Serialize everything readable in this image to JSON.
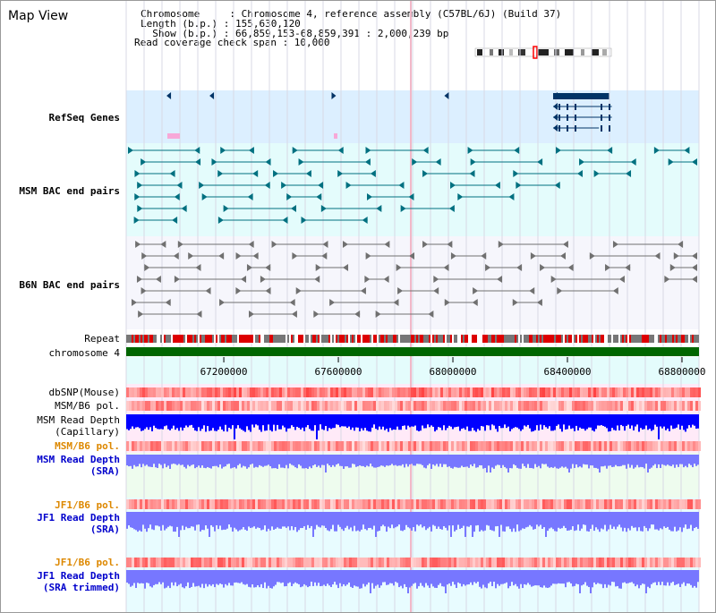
{
  "page": {
    "title": "Map View"
  },
  "info": {
    "lines": [
      "Chromosome     : Chromosome 4, reference assembly (C57BL/6J) (Build 37)",
      "Length (b.p.) : 155,630,120",
      "  Show (b.p.) : 66,859,153-68,859,391 : 2,000,239 bp",
      "Read coverage check span : 10,000"
    ]
  },
  "colors": {
    "refseq_bg": "#dcefff",
    "msm_bac_bg": "#e4fcfc",
    "b6n_bac_bg": "#f6f6fc",
    "depth_bg_pink": "#ffeaf8",
    "depth_bg_green": "#eefcee",
    "depth_bg_cyan": "#e8fcff",
    "gene_color": "#003366",
    "msm_bac_color": "#007080",
    "b6n_bac_color": "#707070",
    "chromosome_color": "#006600",
    "capillary_depth": "#0000ff",
    "sra_depth": "#7777ff",
    "label_blue": "#0000cc",
    "label_teal": "#005577",
    "label_orange": "#dd8800"
  },
  "tracks": {
    "refseq": "RefSeq Genes",
    "msm_bac": "MSM BAC end pairs",
    "b6n_bac": "B6N BAC end pairs",
    "repeat": "Repeat",
    "chromosome": "chromosome 4",
    "dbsnp": "dbSNP(Mouse)",
    "msm_b6_pol_1": "MSM/B6 pol.",
    "msm_depth_cap": [
      "MSM Read Depth",
      "(Capillary)"
    ],
    "msm_b6_pol_2": "MSM/B6 pol.",
    "msm_depth_sra": [
      "MSM Read Depth",
      "(SRA)"
    ],
    "jf1_b6_pol_1": "JF1/B6 pol.",
    "jf1_depth_sra": [
      "JF1 Read Depth",
      "(SRA)"
    ],
    "jf1_b6_pol_2": "JF1/B6 pol.",
    "jf1_depth_trim": [
      "JF1 Read Depth",
      "(SRA trimmed)"
    ]
  },
  "axis": {
    "start": 66859153,
    "end": 68859391,
    "ticks": [
      "67200000",
      "67600000",
      "68000000",
      "68400000",
      "68800000"
    ]
  },
  "genes": [
    {
      "start": 67000000,
      "end": 67040000,
      "strand": "-",
      "row": 0
    },
    {
      "start": 67150000,
      "end": 67152000,
      "strand": "-",
      "row": 0
    },
    {
      "start": 67590000,
      "end": 67592000,
      "strand": "+",
      "row": 0
    },
    {
      "start": 67970000,
      "end": 67972000,
      "strand": "-",
      "row": 0
    },
    {
      "start": 68350000,
      "end": 68545000,
      "strand": "-",
      "row": 0
    },
    {
      "start": 68350000,
      "end": 68555000,
      "strand": "-",
      "row": 1
    },
    {
      "start": 68350000,
      "end": 68555000,
      "strand": "-",
      "row": 2
    },
    {
      "start": 68350000,
      "end": 68510000,
      "strand": "-",
      "row": 3
    }
  ]
}
